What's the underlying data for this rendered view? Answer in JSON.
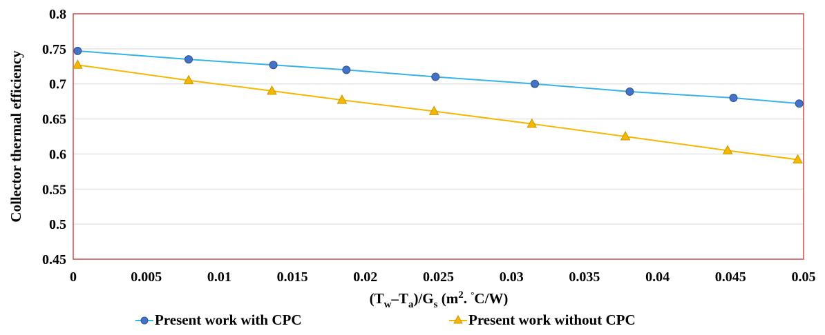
{
  "chart_data": {
    "type": "line",
    "title": "",
    "xlabel": "",
    "ylabel": "Collector thermal efficiency",
    "xlim": [
      0,
      0.05
    ],
    "ylim": [
      0.45,
      0.8
    ],
    "xticks": [
      "0",
      "0.005",
      "0.01",
      "0.015",
      "0.02",
      "0.025",
      "0.03",
      "0.035",
      "0.04",
      "0.045",
      "0.05"
    ],
    "yticks": [
      "0.45",
      "0.5",
      "0.55",
      "0.6",
      "0.65",
      "0.7",
      "0.75",
      "0.8"
    ],
    "grid": "horizontal",
    "legend_position": "bottom",
    "xlabel_parts": {
      "open": "(T",
      "sub_w": "w",
      "minus": "–T",
      "sub_a": "a",
      "over": ")/G",
      "sub_s": "s",
      "unit_open": " (m",
      "sup_2": "2",
      "dot": ". ",
      "deg": "°",
      "unit_close": "C/W)"
    },
    "series": [
      {
        "name": "Present work with CPC",
        "color": "#4472c4",
        "line_color": "#35b3e8",
        "marker": "circle",
        "x": [
          0.0003,
          0.0079,
          0.0137,
          0.0187,
          0.0248,
          0.0316,
          0.0381,
          0.0452,
          0.0497
        ],
        "y": [
          0.747,
          0.735,
          0.727,
          0.72,
          0.71,
          0.7,
          0.689,
          0.68,
          0.672
        ]
      },
      {
        "name": "Present work without CPC",
        "color": "#f5b700",
        "line_color": "#f5b700",
        "marker": "triangle",
        "x": [
          0.0003,
          0.0079,
          0.0136,
          0.0184,
          0.0247,
          0.0314,
          0.0378,
          0.0448,
          0.0496
        ],
        "y": [
          0.727,
          0.705,
          0.69,
          0.677,
          0.661,
          0.643,
          0.625,
          0.605,
          0.592
        ]
      }
    ]
  }
}
